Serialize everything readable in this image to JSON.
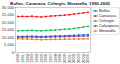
{
  "chart_data": {
    "type": "line",
    "title": "Bullas, Caravaca, Cehegín, Moratalla, 1990-2005",
    "x": [
      1990,
      1991,
      1992,
      1993,
      1994,
      1995,
      1996,
      1997,
      1998,
      1999,
      2000,
      2001,
      2002,
      2003,
      2004,
      2005
    ],
    "series": [
      {
        "name": "Bullas",
        "color": "#0070c0",
        "marker": "square",
        "values": [
          10700,
          10750,
          10820,
          10900,
          10800,
          10700,
          10800,
          10900,
          11000,
          11100,
          11200,
          11350,
          11500,
          11650,
          11800,
          11950
        ]
      },
      {
        "name": "Caravaca",
        "color": "#ff0000",
        "marker": "square",
        "values": [
          24000,
          24100,
          24000,
          24200,
          23900,
          23700,
          24000,
          24300,
          24500,
          24700,
          24900,
          25200,
          25600,
          26000,
          26400,
          26800
        ]
      },
      {
        "name": "Cehegín",
        "color": "#00b050",
        "marker": "square",
        "values": [
          14500,
          14600,
          14700,
          14800,
          14600,
          14500,
          14700,
          14900,
          15000,
          15300,
          15500,
          15700,
          16000,
          16500,
          17000,
          17400
        ]
      },
      {
        "name": "Calasparra",
        "color": "#7030a0",
        "marker": "square",
        "values": [
          10200,
          10300,
          10350,
          10400,
          10250,
          10150,
          10300,
          10400,
          10500,
          10550,
          10600,
          10700,
          10800,
          10900,
          11000,
          11100
        ]
      },
      {
        "name": "Moratalla",
        "color": "#ff6600",
        "marker": "square",
        "values": [
          9200,
          9100,
          9000,
          8900,
          8750,
          8600,
          8700,
          8750,
          8800,
          8850,
          8900,
          8950,
          9000,
          9050,
          9100,
          9150
        ]
      }
    ],
    "xlim": [
      1989.5,
      2005.5
    ],
    "xticks": [
      1990,
      1991,
      1992,
      1993,
      1994,
      1995,
      1996,
      1997,
      1998,
      1999,
      2000,
      2001,
      2002,
      2003,
      2004,
      2005
    ],
    "ylim": [
      0,
      30000
    ],
    "yticks": [
      0,
      {
        "value": 5000,
        "label": "5.000"
      },
      {
        "value": 10000,
        "label": "10.000"
      },
      {
        "value": 15000,
        "label": "15.000"
      },
      {
        "value": 20000,
        "label": "20.000"
      },
      {
        "value": 25000,
        "label": "25.000"
      },
      {
        "value": 30000,
        "label": "30.000"
      }
    ],
    "grid": true,
    "legend": "upper right"
  }
}
